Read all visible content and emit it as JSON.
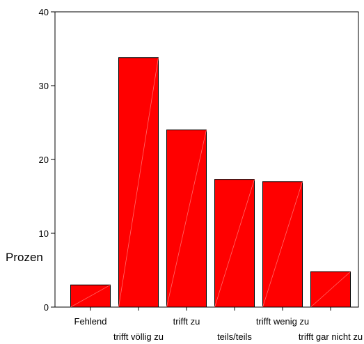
{
  "chart_data": {
    "type": "bar",
    "categories": [
      "Fehlend",
      "trifft völlig zu",
      "trifft zu",
      "teils/teils",
      "trifft wenig zu",
      "trifft gar nicht zu"
    ],
    "values": [
      3.0,
      33.8,
      24.0,
      17.3,
      17.0,
      4.8
    ],
    "ylabel": "Prozen",
    "xlabel": "",
    "ylim": [
      0,
      40
    ],
    "yticks": [
      0,
      10,
      20,
      30,
      40
    ],
    "grid": false,
    "colors": {
      "bar": "#ff0000",
      "bar_stroke": "#000000",
      "frame": "#000000"
    }
  }
}
